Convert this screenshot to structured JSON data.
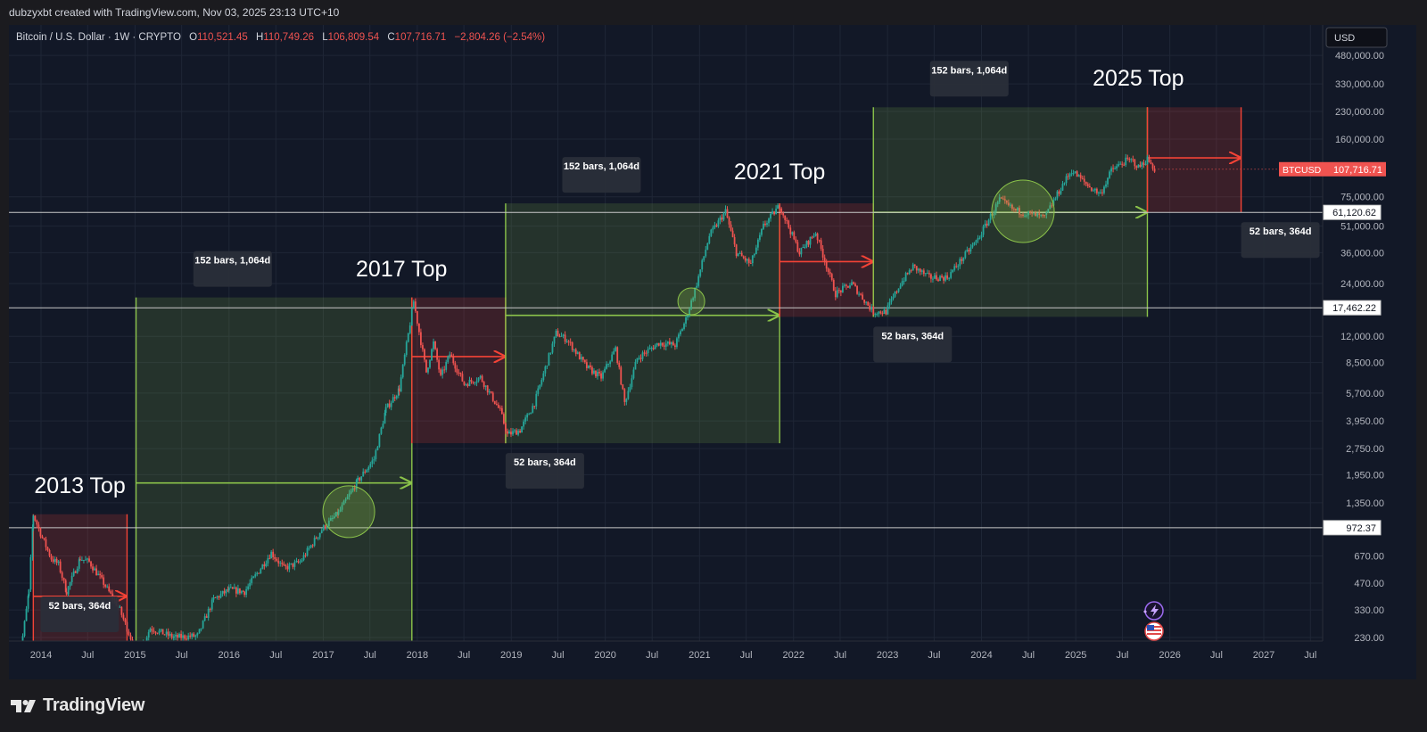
{
  "header": {
    "credit": "dubzyxbt created with TradingView.com, Nov 03, 2025 23:13 UTC+10"
  },
  "symbol_bar": {
    "title": "Bitcoin / U.S. Dollar · 1W · CRYPTO",
    "open_label": "O",
    "open": "110,521.45",
    "high_label": "H",
    "high": "110,749.26",
    "low_label": "L",
    "low": "106,809.54",
    "close_label": "C",
    "close": "107,716.71",
    "change": "−2,804.26 (−2.54%)"
  },
  "currency_button": "USD",
  "footer": {
    "brand": "TradingView"
  },
  "colors": {
    "background": "#121827",
    "up": "#26a69a",
    "down": "#ef5350",
    "range_green": "#8bc34a",
    "range_red": "#f44336",
    "price_tag": "#f05350"
  },
  "chart_data": {
    "type": "line",
    "scale": "log",
    "ylim": [
      210,
      700000
    ],
    "xlim": [
      "2013-09-23",
      "2027-10-01"
    ],
    "x_ticks": [
      "2014",
      "Jul",
      "2015",
      "Jul",
      "2016",
      "Jul",
      "2017",
      "Jul",
      "2018",
      "Jul",
      "2019",
      "Jul",
      "2020",
      "Jul",
      "2021",
      "Jul",
      "2022",
      "Jul",
      "2023",
      "Jul",
      "2024",
      "Jul",
      "2025",
      "Jul",
      "2026",
      "Jul",
      "2027",
      "Jul"
    ],
    "y_ticks": [
      "480,000.00",
      "330,000.00",
      "230,000.00",
      "160,000.00",
      "75,000.00",
      "51,000.00",
      "36,000.00",
      "24,000.00",
      "12,000.00",
      "8,500.00",
      "5,700.00",
      "3,950.00",
      "2,750.00",
      "1,950.00",
      "1,350.00",
      "670.00",
      "470.00",
      "330.00",
      "230.00"
    ],
    "price_series": {
      "name": "BTCUSD",
      "points": [
        [
          "2013-10-01",
          140
        ],
        [
          "2013-11-15",
          420
        ],
        [
          "2013-12-02",
          1150
        ],
        [
          "2014-01-06",
          850
        ],
        [
          "2014-02-10",
          650
        ],
        [
          "2014-03-10",
          600
        ],
        [
          "2014-04-10",
          420
        ],
        [
          "2014-06-02",
          650
        ],
        [
          "2014-07-07",
          620
        ],
        [
          "2014-09-01",
          470
        ],
        [
          "2014-11-03",
          330
        ],
        [
          "2015-01-12",
          180
        ],
        [
          "2015-03-01",
          260
        ],
        [
          "2015-06-01",
          230
        ],
        [
          "2015-09-01",
          235
        ],
        [
          "2015-11-02",
          380
        ],
        [
          "2016-01-01",
          430
        ],
        [
          "2016-03-01",
          420
        ],
        [
          "2016-06-13",
          700
        ],
        [
          "2016-08-01",
          570
        ],
        [
          "2016-10-03",
          620
        ],
        [
          "2016-12-26",
          950
        ],
        [
          "2017-03-01",
          1180
        ],
        [
          "2017-05-15",
          1800
        ],
        [
          "2017-07-17",
          2400
        ],
        [
          "2017-09-01",
          4600
        ],
        [
          "2017-10-23",
          6000
        ],
        [
          "2017-12-18",
          19000
        ],
        [
          "2018-02-05",
          7500
        ],
        [
          "2018-03-05",
          11000
        ],
        [
          "2018-04-02",
          7000
        ],
        [
          "2018-05-07",
          9500
        ],
        [
          "2018-07-02",
          6400
        ],
        [
          "2018-09-03",
          7000
        ],
        [
          "2018-11-19",
          4500
        ],
        [
          "2018-12-17",
          3300
        ],
        [
          "2019-02-04",
          3500
        ],
        [
          "2019-04-01",
          5000
        ],
        [
          "2019-06-24",
          12500
        ],
        [
          "2019-08-05",
          11500
        ],
        [
          "2019-10-21",
          8000
        ],
        [
          "2019-12-16",
          7000
        ],
        [
          "2020-02-10",
          10200
        ],
        [
          "2020-03-16",
          5000
        ],
        [
          "2020-05-04",
          9000
        ],
        [
          "2020-07-27",
          11000
        ],
        [
          "2020-09-28",
          10700
        ],
        [
          "2020-11-09",
          15000
        ],
        [
          "2020-12-21",
          24000
        ],
        [
          "2021-02-08",
          45000
        ],
        [
          "2021-04-12",
          62000
        ],
        [
          "2021-05-24",
          36000
        ],
        [
          "2021-07-19",
          31000
        ],
        [
          "2021-09-06",
          51000
        ],
        [
          "2021-11-08",
          67000
        ],
        [
          "2022-01-24",
          36000
        ],
        [
          "2022-03-28",
          47000
        ],
        [
          "2022-06-13",
          21000
        ],
        [
          "2022-08-15",
          24000
        ],
        [
          "2022-11-07",
          16500
        ],
        [
          "2022-12-26",
          16600
        ],
        [
          "2023-02-20",
          24000
        ],
        [
          "2023-04-10",
          30000
        ],
        [
          "2023-06-12",
          26000
        ],
        [
          "2023-08-21",
          26000
        ],
        [
          "2023-10-23",
          34000
        ],
        [
          "2023-12-18",
          43000
        ],
        [
          "2024-03-11",
          72000
        ],
        [
          "2024-05-06",
          63000
        ],
        [
          "2024-07-01",
          60000
        ],
        [
          "2024-09-02",
          57000
        ],
        [
          "2024-11-11",
          88000
        ],
        [
          "2024-12-16",
          106000
        ],
        [
          "2025-02-24",
          85000
        ],
        [
          "2025-04-07",
          78000
        ],
        [
          "2025-05-19",
          106000
        ],
        [
          "2025-07-14",
          120000
        ],
        [
          "2025-08-11",
          120000
        ],
        [
          "2025-09-01",
          110000
        ],
        [
          "2025-10-06",
          123000
        ],
        [
          "2025-11-03",
          107716.71
        ]
      ]
    },
    "horizontal_lines": [
      {
        "value": 61120.62,
        "label": "61,120.62"
      },
      {
        "value": 17462.22,
        "label": "17,462.22"
      },
      {
        "value": 972.37,
        "label": "972.37"
      }
    ],
    "last_price": {
      "symbol": "BTCUSD",
      "value": 107716.71,
      "label": "107,716.71"
    },
    "ranges": [
      {
        "type": "up",
        "x0": "2015-01-05",
        "x1": "2017-12-11",
        "y0": 210,
        "y1": 20000,
        "arrow_y": 1750,
        "label": "152 bars, 1,064d"
      },
      {
        "type": "down",
        "x0": "2017-12-11",
        "x1": "2018-12-10",
        "y0": 2950,
        "y1": 20000,
        "arrow_y": 9200,
        "label": "52 bars, 364d"
      },
      {
        "type": "up",
        "x0": "2018-12-10",
        "x1": "2021-11-08",
        "y0": 2950,
        "y1": 68800,
        "arrow_y": 15800,
        "label": "152 bars, 1,064d"
      },
      {
        "type": "down",
        "x0": "2021-11-08",
        "x1": "2022-11-07",
        "y0": 15500,
        "y1": 68800,
        "arrow_y": 32000,
        "label": "52 bars, 364d"
      },
      {
        "type": "up",
        "x0": "2022-11-07",
        "x1": "2025-10-06",
        "y0": 15500,
        "y1": 243000,
        "arrow_y": 61120,
        "label": "152 bars, 1,064d"
      },
      {
        "type": "down",
        "x0": "2025-10-06",
        "x1": "2026-10-05",
        "y0": 61120,
        "y1": 243000,
        "arrow_y": 125000,
        "label": "52 bars, 364d"
      },
      {
        "type": "down",
        "x0": "2013-12-02",
        "x1": "2014-12-01",
        "y0": 210,
        "y1": 1160,
        "arrow_y": 395,
        "label": "52 bars, 364d"
      }
    ],
    "annotations": [
      "2013 Top",
      "2017 Top",
      "2021 Top",
      "2025 Top"
    ],
    "highlight_circles": [
      {
        "x": "2017-04-10",
        "y": 1200
      },
      {
        "x": "2020-11-30",
        "y": 19000
      },
      {
        "x": "2024-06-10",
        "y": 62000
      }
    ]
  }
}
